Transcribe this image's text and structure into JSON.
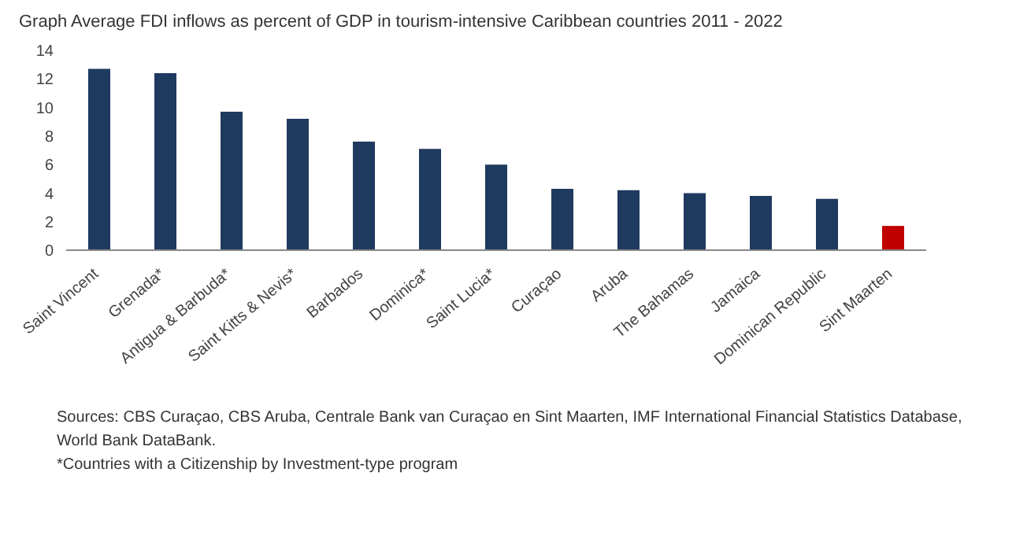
{
  "chart_data": {
    "type": "bar",
    "title": "Graph Average FDI inflows as percent of GDP in tourism-intensive Caribbean countries 2011 - 2022",
    "categories": [
      "Saint Vincent",
      "Grenada*",
      "Antigua & Barbuda*",
      "Saint Kitts & Nevis*",
      "Barbados",
      "Dominica*",
      "Saint Lucia*",
      "Curaçao",
      "Aruba",
      "The Bahamas",
      "Jamaica",
      "Dominican Republic",
      "Sint Maarten"
    ],
    "values": [
      12.7,
      12.4,
      9.7,
      9.2,
      7.6,
      7.1,
      6.0,
      4.3,
      4.2,
      4.0,
      3.8,
      3.6,
      1.7
    ],
    "colors": [
      "#1f3a5f",
      "#1f3a5f",
      "#1f3a5f",
      "#1f3a5f",
      "#1f3a5f",
      "#1f3a5f",
      "#1f3a5f",
      "#1f3a5f",
      "#1f3a5f",
      "#1f3a5f",
      "#1f3a5f",
      "#1f3a5f",
      "#c00000"
    ],
    "ylim": [
      0,
      14
    ],
    "yticks": [
      0,
      2,
      4,
      6,
      8,
      10,
      12,
      14
    ],
    "grid": false,
    "legend": false,
    "annotations": [
      "Sources: CBS Curaçao, CBS Aruba, Centrale Bank van Curaçao en Sint Maarten, IMF International Financial Statistics Database, World Bank DataBank.",
      "*Countries with a Citizenship by Investment-type program"
    ]
  }
}
